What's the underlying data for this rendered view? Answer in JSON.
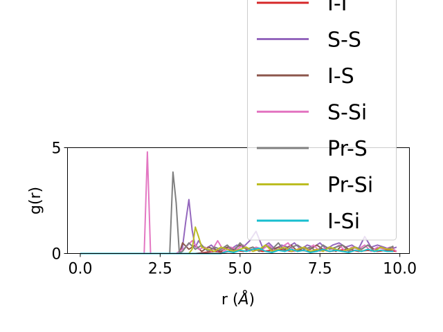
{
  "chart_data": {
    "type": "line",
    "xlabel_main": "r (",
    "xlabel_unit": "Å",
    "xlabel_close": ")",
    "ylabel": "g(r)",
    "xlim": [
      -0.4,
      10.3
    ],
    "ylim": [
      0,
      5
    ],
    "xticks": [
      {
        "value": 0.0,
        "label": "0.0"
      },
      {
        "value": 2.5,
        "label": "2.5"
      },
      {
        "value": 5.0,
        "label": "5.0"
      },
      {
        "value": 7.5,
        "label": "7.5"
      },
      {
        "value": 10.0,
        "label": "10.0"
      }
    ],
    "yticks": [
      {
        "value": 0,
        "label": "0"
      },
      {
        "value": 5,
        "label": "5"
      }
    ],
    "legend_position": "upper right (extends above axes)",
    "series": [
      {
        "name": "I-I",
        "color": "#d62728",
        "x": [
          0.0,
          3.6,
          3.9,
          4.2,
          4.5,
          4.8,
          5.1,
          5.4,
          5.7,
          6.0,
          6.3,
          6.6,
          6.9,
          7.2,
          7.5,
          7.8,
          8.1,
          8.4,
          8.7,
          9.0,
          9.3,
          9.6,
          9.9
        ],
        "y": [
          0.0,
          0.0,
          0.05,
          0.1,
          0.05,
          0.15,
          0.1,
          0.2,
          0.1,
          0.15,
          0.2,
          0.1,
          0.15,
          0.1,
          0.2,
          0.1,
          0.15,
          0.2,
          0.1,
          0.15,
          0.1,
          0.15,
          0.1
        ]
      },
      {
        "name": "S-S",
        "color": "#9467bd",
        "x": [
          0.0,
          3.1,
          3.2,
          3.3,
          3.4,
          3.5,
          3.6,
          3.7,
          3.9,
          4.1,
          4.3,
          4.5,
          4.7,
          4.9,
          5.1,
          5.3,
          5.5,
          5.7,
          5.9,
          6.1,
          6.3,
          6.5,
          6.7,
          6.9,
          7.1,
          7.3,
          7.5,
          7.7,
          7.9,
          8.1,
          8.3,
          8.5,
          8.7,
          8.9,
          9.1,
          9.3,
          9.5,
          9.7,
          9.9
        ],
        "y": [
          0.0,
          0.0,
          0.3,
          1.5,
          2.55,
          1.1,
          0.3,
          0.6,
          0.2,
          0.4,
          0.1,
          0.3,
          0.2,
          0.4,
          0.3,
          0.6,
          1.05,
          0.3,
          0.5,
          0.2,
          0.4,
          0.3,
          0.5,
          0.2,
          0.4,
          0.3,
          0.5,
          0.2,
          0.4,
          0.5,
          0.3,
          0.4,
          0.2,
          0.8,
          0.3,
          0.4,
          0.3,
          0.2,
          0.3
        ]
      },
      {
        "name": "I-S",
        "color": "#8c564b",
        "x": [
          0.0,
          3.1,
          3.2,
          3.4,
          3.6,
          3.8,
          4.0,
          4.2,
          4.4,
          4.6,
          4.8,
          5.0,
          5.2,
          5.4,
          5.6,
          5.8,
          6.0,
          6.2,
          6.4,
          6.6,
          6.8,
          7.0,
          7.2,
          7.4,
          7.6,
          7.8,
          8.0,
          8.2,
          8.4,
          8.6,
          8.8,
          9.0,
          9.2,
          9.4,
          9.6,
          9.8
        ],
        "y": [
          0.0,
          0.0,
          0.5,
          0.2,
          0.4,
          0.1,
          0.3,
          0.2,
          0.1,
          0.3,
          0.2,
          0.4,
          0.2,
          0.3,
          0.1,
          0.4,
          0.2,
          0.3,
          0.2,
          0.4,
          0.1,
          0.3,
          0.2,
          0.4,
          0.2,
          0.3,
          0.1,
          0.4,
          0.2,
          0.3,
          0.2,
          0.4,
          0.2,
          0.3,
          0.2,
          0.3
        ]
      },
      {
        "name": "S-Si",
        "color": "#e377c2",
        "x": [
          0.0,
          2.0,
          2.1,
          2.2,
          3.0,
          3.3,
          3.5,
          3.7,
          3.9,
          4.1,
          4.3,
          4.5,
          4.7,
          4.9,
          5.1,
          5.3,
          5.5,
          5.7,
          5.9,
          6.1,
          6.3,
          6.5,
          6.7,
          6.9,
          7.1,
          7.3,
          7.5,
          7.7,
          7.9,
          8.1,
          8.3,
          8.5,
          8.7,
          8.9,
          9.1,
          9.3,
          9.5,
          9.7,
          9.9
        ],
        "y": [
          0.0,
          0.0,
          4.8,
          0.0,
          0.0,
          0.3,
          0.6,
          0.2,
          0.3,
          0.1,
          0.6,
          0.1,
          0.3,
          0.2,
          0.4,
          0.1,
          0.3,
          0.2,
          0.4,
          0.1,
          0.3,
          0.5,
          0.1,
          0.3,
          0.2,
          0.4,
          0.1,
          0.3,
          0.2,
          0.4,
          0.1,
          0.3,
          0.2,
          0.4,
          0.1,
          0.3,
          0.2,
          0.3,
          0.1
        ]
      },
      {
        "name": "Pr-S",
        "color": "#7f7f7f",
        "x": [
          0.0,
          2.8,
          2.9,
          3.0,
          3.1,
          3.2,
          3.4,
          3.6,
          3.8,
          4.0,
          4.2,
          4.4,
          4.6,
          4.8,
          5.0,
          5.2,
          5.4,
          5.6,
          5.8,
          6.0,
          6.2,
          6.4,
          6.6,
          6.8,
          7.0,
          7.2,
          7.4,
          7.6,
          7.8,
          8.0,
          8.2,
          8.4,
          8.6,
          8.8,
          9.0,
          9.2,
          9.4,
          9.6,
          9.8
        ],
        "y": [
          0.0,
          0.0,
          3.85,
          2.4,
          0.0,
          0.1,
          0.5,
          0.2,
          0.4,
          0.1,
          0.3,
          0.2,
          0.4,
          0.1,
          0.5,
          0.2,
          0.3,
          0.1,
          0.4,
          0.2,
          0.5,
          0.1,
          0.3,
          0.4,
          0.2,
          0.3,
          0.1,
          0.4,
          0.2,
          0.3,
          0.4,
          0.1,
          0.3,
          0.2,
          0.4,
          0.1,
          0.3,
          0.2,
          0.35
        ]
      },
      {
        "name": "Pr-Si",
        "color": "#bcbd22",
        "x": [
          0.0,
          3.4,
          3.5,
          3.6,
          3.7,
          3.8,
          4.0,
          4.2,
          4.4,
          4.6,
          4.8,
          5.0,
          5.2,
          5.4,
          5.6,
          5.8,
          6.0,
          6.2,
          6.4,
          6.6,
          6.8,
          7.0,
          7.2,
          7.4,
          7.6,
          7.8,
          8.0,
          8.2,
          8.4,
          8.6,
          8.8,
          9.0,
          9.2,
          9.4,
          9.6,
          9.8
        ],
        "y": [
          0.0,
          0.0,
          0.2,
          1.25,
          0.8,
          0.3,
          0.2,
          0.1,
          0.3,
          0.2,
          0.1,
          0.2,
          0.3,
          0.1,
          0.2,
          0.4,
          0.1,
          0.2,
          0.3,
          0.1,
          0.2,
          0.3,
          0.1,
          0.2,
          0.1,
          0.3,
          0.2,
          0.1,
          0.2,
          0.3,
          0.1,
          0.2,
          0.1,
          0.3,
          0.2,
          0.2
        ]
      },
      {
        "name": "I-Si",
        "color": "#17becf",
        "x": [
          0.0,
          4.4,
          4.6,
          4.8,
          5.0,
          5.2,
          5.4,
          5.6,
          5.8,
          6.0,
          6.2,
          6.4,
          6.6,
          6.8,
          7.0,
          7.2,
          7.4,
          7.6,
          7.8,
          8.0,
          8.2,
          8.4,
          8.6,
          8.8,
          9.0,
          9.2,
          9.4,
          9.6,
          9.8
        ],
        "y": [
          0.0,
          0.0,
          0.1,
          0.05,
          0.15,
          0.1,
          0.2,
          0.25,
          0.1,
          0.05,
          0.15,
          0.1,
          0.2,
          0.1,
          0.15,
          0.05,
          0.1,
          0.2,
          0.1,
          0.15,
          0.1,
          0.05,
          0.15,
          0.1,
          0.2,
          0.1,
          0.15,
          0.1,
          0.1
        ]
      }
    ]
  }
}
